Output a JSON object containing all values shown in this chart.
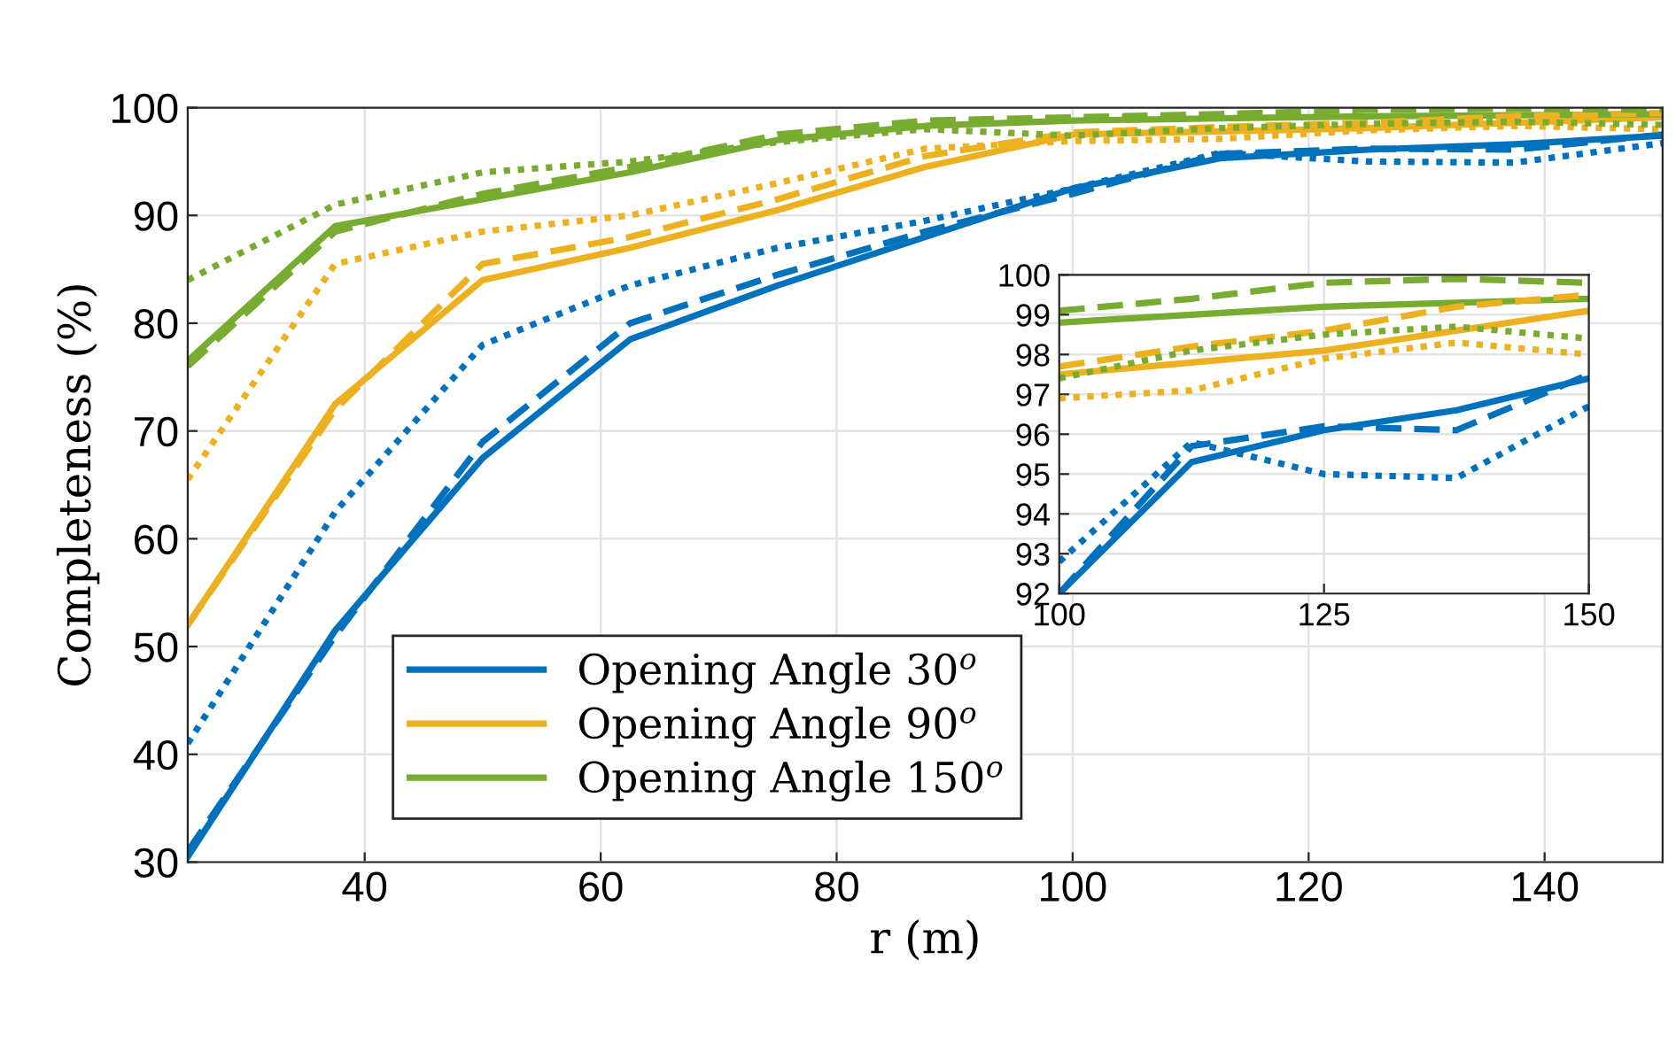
{
  "chart_data": [
    {
      "type": "line",
      "xlabel": "r (m)",
      "ylabel": "Completeness (%)",
      "x": [
        25,
        37.5,
        50,
        62.5,
        75,
        87.5,
        100,
        112.5,
        125,
        137.5,
        150
      ],
      "xlim": [
        25,
        150
      ],
      "ylim": [
        30,
        100
      ],
      "xticks": [
        40,
        60,
        80,
        100,
        120,
        140
      ],
      "yticks": [
        30,
        40,
        50,
        60,
        70,
        80,
        90,
        100
      ],
      "grid": true,
      "legend": "bottom",
      "marker": "none",
      "series": [
        {
          "name": "Opening Angle 30$^{o}$",
          "color": "#0072bd",
          "line_style": "solid",
          "values": [
            30.5,
            51.5,
            67.5,
            78.5,
            83.5,
            88,
            92.5,
            95.3,
            96.1,
            96.6,
            97.4
          ]
        },
        {
          "name": "Opening Angle 90$^{o}$",
          "color": "#edb120",
          "line_style": "solid",
          "values": [
            52,
            72.5,
            84,
            87,
            90.5,
            94.5,
            97.5,
            97.8,
            98.1,
            98.6,
            99.1
          ]
        },
        {
          "name": "Opening Angle 150$^{o}$",
          "color": "#77ac30",
          "line_style": "solid",
          "values": [
            76.5,
            89,
            91.5,
            94,
            97,
            98.3,
            98.8,
            99.0,
            99.2,
            99.3,
            99.4
          ]
        },
        {
          "color": "#0072bd",
          "line_style": "dashed",
          "values": [
            31,
            51,
            69,
            80,
            84.5,
            88.5,
            92,
            95.7,
            96.2,
            96.1,
            97.5
          ]
        },
        {
          "color": "#edb120",
          "line_style": "dashed",
          "values": [
            52,
            72,
            85.5,
            88,
            91.5,
            95.5,
            97.7,
            98.2,
            98.6,
            99.2,
            99.5
          ]
        },
        {
          "color": "#77ac30",
          "line_style": "dashed",
          "values": [
            76,
            88.5,
            92,
            94.5,
            97.5,
            98.8,
            99.1,
            99.4,
            99.8,
            99.9,
            99.8
          ]
        },
        {
          "color": "#0072bd",
          "line_style": "dotted",
          "values": [
            41,
            62.5,
            78,
            83.5,
            87,
            89.5,
            92.5,
            95.8,
            95.0,
            94.9,
            96.7
          ]
        },
        {
          "color": "#edb120",
          "line_style": "dotted",
          "values": [
            65.5,
            85.5,
            88.5,
            90,
            93,
            96.2,
            96.9,
            97.1,
            97.9,
            98.3,
            98.0
          ]
        },
        {
          "color": "#77ac30",
          "line_style": "dotted",
          "values": [
            84,
            91,
            94,
            95,
            96.8,
            98,
            97.4,
            98.1,
            98.5,
            98.7,
            98.4
          ]
        }
      ]
    },
    {
      "type": "line",
      "x": [
        100,
        112.5,
        125,
        137.5,
        150
      ],
      "xlim": [
        100,
        150
      ],
      "ylim": [
        92,
        100
      ],
      "xticks": [
        100,
        125,
        150
      ],
      "yticks": [
        92,
        93,
        94,
        95,
        96,
        97,
        98,
        99,
        100
      ],
      "grid": true,
      "marker": "none",
      "series": [
        {
          "color": "#0072bd",
          "line_style": "solid",
          "values": [
            92,
            95.3,
            96.1,
            96.6,
            97.4
          ]
        },
        {
          "color": "#edb120",
          "line_style": "solid",
          "values": [
            97.5,
            97.8,
            98.1,
            98.6,
            99.1
          ]
        },
        {
          "color": "#77ac30",
          "line_style": "solid",
          "values": [
            98.8,
            99.0,
            99.2,
            99.3,
            99.4
          ]
        },
        {
          "color": "#0072bd",
          "line_style": "dashed",
          "values": [
            92,
            95.7,
            96.2,
            96.1,
            97.5
          ]
        },
        {
          "color": "#edb120",
          "line_style": "dashed",
          "values": [
            97.7,
            98.2,
            98.6,
            99.2,
            99.5
          ]
        },
        {
          "color": "#77ac30",
          "line_style": "dashed",
          "values": [
            99.1,
            99.4,
            99.8,
            99.9,
            99.8
          ]
        },
        {
          "color": "#0072bd",
          "line_style": "dotted",
          "values": [
            92.8,
            95.8,
            95.0,
            94.9,
            96.7
          ]
        },
        {
          "color": "#edb120",
          "line_style": "dotted",
          "values": [
            96.9,
            97.1,
            97.9,
            98.3,
            98.0
          ]
        },
        {
          "color": "#77ac30",
          "line_style": "dotted",
          "values": [
            97.4,
            98.1,
            98.5,
            98.7,
            98.4
          ]
        }
      ]
    }
  ]
}
